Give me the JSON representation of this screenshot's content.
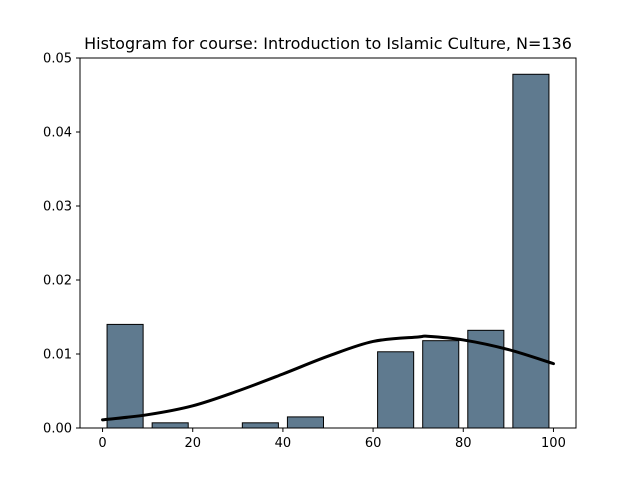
{
  "chart_data": {
    "type": "bar",
    "title": "Histogram for course: Introduction to Islamic Culture,  N=136",
    "xlabel": "",
    "ylabel": "",
    "xlim": [
      -5,
      105
    ],
    "ylim": [
      0,
      0.05
    ],
    "grid": false,
    "bin_edges": [
      0,
      10,
      20,
      30,
      40,
      50,
      60,
      70,
      80,
      90,
      100
    ],
    "values": [
      0.014,
      0.0007,
      0.0,
      0.0007,
      0.0015,
      0.0,
      0.0103,
      0.0118,
      0.0132,
      0.0478
    ],
    "x_ticks": [
      0,
      20,
      40,
      60,
      80,
      100
    ],
    "x_tick_labels": [
      "0",
      "20",
      "40",
      "60",
      "80",
      "100"
    ],
    "y_ticks": [
      0,
      0.01,
      0.02,
      0.03,
      0.04,
      0.05
    ],
    "y_tick_labels": [
      "0.00",
      "0.01",
      "0.02",
      "0.03",
      "0.04",
      "0.05"
    ],
    "curve": {
      "type": "normal_density",
      "x_range": [
        0,
        100
      ],
      "x": [
        0,
        10,
        20,
        30,
        40,
        50,
        60,
        70,
        72,
        80,
        90,
        100
      ],
      "y": [
        0.0011,
        0.0018,
        0.003,
        0.005,
        0.0073,
        0.0097,
        0.0117,
        0.0123,
        0.0124,
        0.0119,
        0.0106,
        0.0087
      ]
    },
    "colors": {
      "bar_fill": "#5f7a8f",
      "bar_edge": "#000000",
      "curve": "#000000"
    }
  }
}
